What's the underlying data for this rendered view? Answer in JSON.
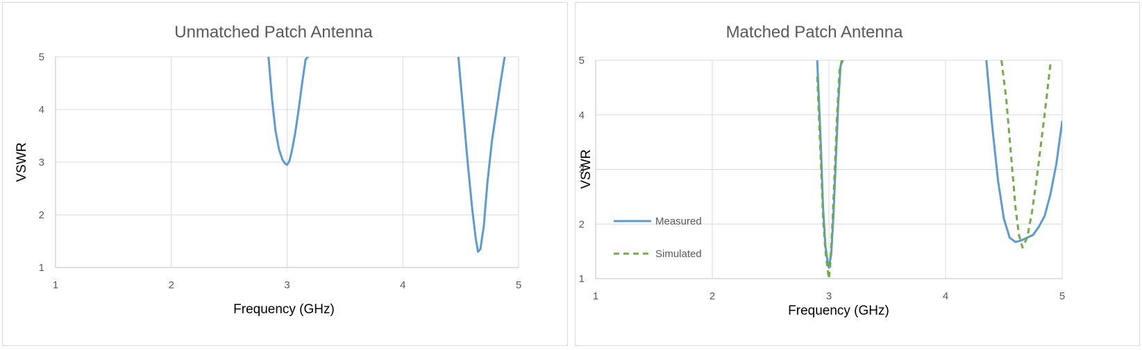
{
  "chart_data": [
    {
      "type": "line",
      "title": "Unmatched Patch Antenna",
      "xlabel": "Frequency (GHz)",
      "ylabel": "VSWR",
      "xlim": [
        1,
        5
      ],
      "ylim": [
        1,
        5
      ],
      "x_ticks": [
        "1",
        "2",
        "3",
        "4",
        "5"
      ],
      "y_ticks": [
        "1",
        "2",
        "3",
        "4",
        "5"
      ],
      "grid": true,
      "legend": "none",
      "series": [
        {
          "style": "solid",
          "color": "#5b9bd5",
          "x": [
            2.84,
            2.87,
            2.9,
            2.93,
            2.96,
            2.98,
            3.0,
            3.02,
            3.04,
            3.07,
            3.1,
            3.13,
            3.16,
            3.18,
            null,
            4.48,
            4.52,
            4.56,
            4.6,
            4.63,
            4.65,
            4.67,
            4.7,
            4.73,
            4.77,
            4.81,
            4.85,
            4.88
          ],
          "y": [
            5.0,
            4.2,
            3.6,
            3.25,
            3.05,
            2.98,
            2.95,
            3.02,
            3.2,
            3.55,
            4.0,
            4.5,
            4.95,
            5.0,
            null,
            5.0,
            4.0,
            3.0,
            2.1,
            1.55,
            1.3,
            1.35,
            1.8,
            2.6,
            3.4,
            4.0,
            4.6,
            5.0
          ]
        }
      ]
    },
    {
      "type": "line",
      "title": "Matched Patch Antenna",
      "xlabel": "Frequency (GHz)",
      "ylabel": "VSWR",
      "xlim": [
        1,
        5
      ],
      "ylim": [
        1,
        5
      ],
      "x_ticks": [
        "1",
        "2",
        "3",
        "4",
        "5"
      ],
      "y_ticks": [
        "1",
        "2",
        "3",
        "4",
        "5"
      ],
      "grid": true,
      "legend": "left",
      "series": [
        {
          "name": "Measured",
          "style": "solid",
          "color": "#5b9bd5",
          "x": [
            2.9,
            2.93,
            2.95,
            2.97,
            2.99,
            3.0,
            3.02,
            3.04,
            3.06,
            3.08,
            3.1,
            3.12,
            null,
            4.35,
            4.4,
            4.45,
            4.5,
            4.55,
            4.6,
            4.65,
            4.7,
            4.75,
            4.8,
            4.85,
            4.9,
            4.95,
            5.0
          ],
          "y": [
            5.0,
            3.5,
            2.3,
            1.6,
            1.3,
            1.2,
            1.45,
            2.2,
            3.2,
            4.2,
            4.9,
            5.0,
            null,
            5.0,
            3.8,
            2.8,
            2.1,
            1.75,
            1.67,
            1.7,
            1.75,
            1.8,
            1.95,
            2.15,
            2.55,
            3.1,
            3.88
          ]
        },
        {
          "name": "Simulated",
          "style": "dashed",
          "color": "#70ad47",
          "x": [
            2.9,
            2.93,
            2.95,
            2.97,
            2.99,
            3.0,
            3.01,
            3.03,
            3.05,
            3.07,
            3.09,
            3.11,
            null,
            4.48,
            4.52,
            4.56,
            4.6,
            4.63,
            4.66,
            4.7,
            4.74,
            4.78,
            4.82,
            4.86,
            4.9
          ],
          "y": [
            4.7,
            3.2,
            2.1,
            1.5,
            1.15,
            1.0,
            1.2,
            2.0,
            3.0,
            4.0,
            4.8,
            5.0,
            null,
            5.0,
            4.3,
            3.3,
            2.3,
            1.8,
            1.57,
            1.75,
            2.2,
            2.8,
            3.5,
            4.2,
            4.95
          ]
        }
      ]
    }
  ]
}
